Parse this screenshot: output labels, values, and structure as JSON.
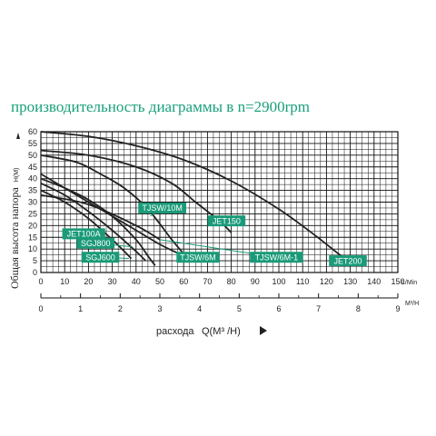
{
  "chart_data": {
    "type": "line",
    "title": "производительность диаграммы в  n=2900rpm",
    "ylabel": "Общая высота напора",
    "ylabel_unit": "H(M)",
    "xlabel": "расхода",
    "xlabel_unit": "Q(M³ /H)",
    "x_unit_lmin": "L/Min",
    "x_unit_m3h": "M³/H",
    "xlim": [
      0,
      150
    ],
    "ylim": [
      0,
      60
    ],
    "x_ticks_lmin": [
      "0",
      "10",
      "20",
      "30",
      "40",
      "50",
      "60",
      "70",
      "80",
      "90",
      "100",
      "110",
      "120",
      "130",
      "140",
      "150"
    ],
    "x_ticks_m3h": [
      "0",
      "1",
      "2",
      "3",
      "4",
      "5",
      "6",
      "7",
      "8",
      "9"
    ],
    "y_ticks": [
      "0",
      "5",
      "10",
      "15",
      "20",
      "25",
      "30",
      "35",
      "40",
      "45",
      "50",
      "55",
      "60"
    ],
    "grid": true,
    "series": [
      {
        "name": "JET200",
        "x": [
          0,
          20,
          40,
          60,
          80,
          100,
          115,
          125,
          128
        ],
        "y": [
          60,
          58,
          54,
          48,
          39,
          27,
          16,
          8,
          6
        ]
      },
      {
        "name": "JET150",
        "x": [
          0,
          20,
          40,
          55,
          65,
          75,
          80
        ],
        "y": [
          52,
          50,
          45,
          38,
          30,
          22,
          17
        ]
      },
      {
        "name": "TJSW/10M",
        "x": [
          0,
          15,
          25,
          35,
          45,
          55,
          60
        ],
        "y": [
          50,
          47,
          42,
          36,
          27,
          14,
          8
        ]
      },
      {
        "name": "JET100A",
        "x": [
          0,
          10,
          20,
          30,
          40,
          45,
          48
        ],
        "y": [
          40,
          36,
          31,
          24,
          14,
          7,
          3
        ]
      },
      {
        "name": "SGJ800",
        "x": [
          0,
          10,
          20,
          30,
          40,
          44
        ],
        "y": [
          38,
          33,
          26,
          18,
          9,
          5
        ]
      },
      {
        "name": "SGJ600",
        "x": [
          0,
          10,
          20,
          30,
          38
        ],
        "y": [
          35,
          30,
          23,
          14,
          6
        ]
      },
      {
        "name": "TJSW/6M",
        "x": [
          0,
          10,
          20,
          30,
          40,
          50,
          58
        ],
        "y": [
          42,
          36,
          30,
          24,
          18,
          12,
          8
        ]
      },
      {
        "name": "TJSW/6M-1",
        "x": [
          0,
          20,
          40,
          50
        ],
        "y": [
          33,
          29,
          20,
          14
        ]
      }
    ],
    "labels": [
      {
        "text": "TJSW/10M",
        "x": 51,
        "y": 27.5,
        "lx": 46,
        "ly": 24
      },
      {
        "text": "JET150",
        "x": 78,
        "y": 22,
        "lx": 72,
        "ly": 22
      },
      {
        "text": "JET100A",
        "x": 18,
        "y": 16.5,
        "lx": 30,
        "ly": 14
      },
      {
        "text": "SGJ800",
        "x": 23,
        "y": 12.5,
        "lx": 38,
        "ly": 11
      },
      {
        "text": "SGJ600",
        "x": 25,
        "y": 6.5,
        "lx": 37,
        "ly": 6
      },
      {
        "text": "TJSW/6M",
        "x": 66,
        "y": 6.5,
        "lx": 58,
        "ly": 8
      },
      {
        "text": "TJSW/6M-1",
        "x": 99,
        "y": 6.5,
        "lx": 50,
        "ly": 14
      },
      {
        "text": "JET200",
        "x": 129,
        "y": 5,
        "lx": 127,
        "ly": 6
      }
    ],
    "colors": {
      "curve": "#222222",
      "label_bg": "#1a9a78",
      "title": "#19a07a",
      "grid": "#111111"
    }
  }
}
